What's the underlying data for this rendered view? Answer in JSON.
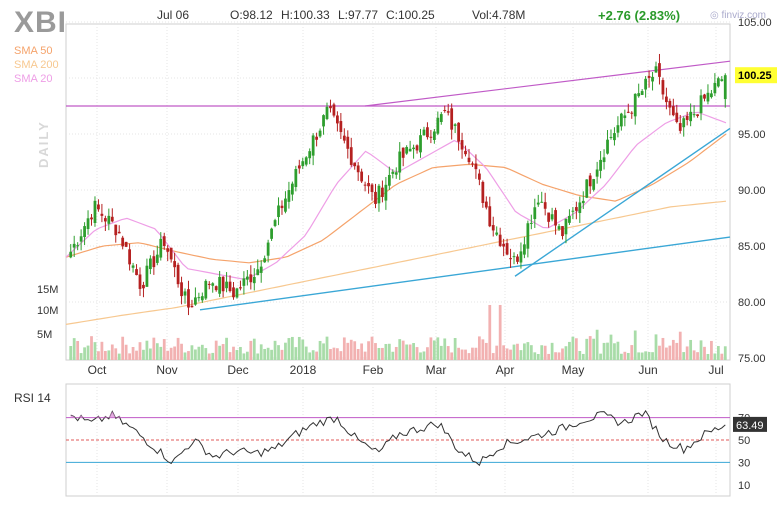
{
  "header": {
    "ticker": "XBI",
    "date": "Jul 06",
    "open": "O:98.12",
    "high": "H:100.33",
    "low": "L:97.77",
    "close": "C:100.25",
    "volume": "Vol:4.78M",
    "change": "+2.76 (2.83%)",
    "brand": "finviz.com",
    "timeframe": "DAILY"
  },
  "legend": [
    {
      "label": "SMA 50",
      "color": "#f5a36b"
    },
    {
      "label": "SMA 200",
      "color": "#f7c890"
    },
    {
      "label": "SMA 20",
      "color": "#ee9ee6"
    }
  ],
  "colors": {
    "up": "#2e9e2e",
    "down": "#b52020",
    "vol_up": "#a8dca8",
    "vol_down": "#f2b1b1",
    "trend_blue": "#3aa7d6",
    "trend_purple": "#c05ac7",
    "grid": "#e6e6e6",
    "price_flag": "#ffff33"
  },
  "chart_data": [
    {
      "type": "candlestick",
      "title": "XBI",
      "price_axis_ticks": [
        75,
        80,
        85,
        90,
        95,
        100,
        105
      ],
      "ylim": [
        75,
        105
      ],
      "volume_axis_ticks": [
        "5M",
        "10M",
        "15M"
      ],
      "x_tick_labels": [
        "Oct",
        "Nov",
        "Dec",
        "2018",
        "Feb",
        "Mar",
        "Apr",
        "May",
        "Jun",
        "Jul"
      ],
      "last_price_label": "100.25",
      "anchors": [
        {
          "month": "Sep",
          "value": 84.5
        },
        {
          "month": "Oct",
          "value": 88.5
        },
        {
          "month": "Oct",
          "value": 86.5
        },
        {
          "month": "Nov",
          "value": 81.5
        },
        {
          "month": "Nov",
          "value": 85.5
        },
        {
          "month": "Nov",
          "value": 79.5
        },
        {
          "month": "Dec",
          "value": 82.0
        },
        {
          "month": "Dec",
          "value": 80.8
        },
        {
          "month": "Dec",
          "value": 83.0
        },
        {
          "month": "Jan",
          "value": 88.5
        },
        {
          "month": "Jan",
          "value": 93.0
        },
        {
          "month": "Jan",
          "value": 97.0
        },
        {
          "month": "Feb",
          "value": 93.0
        },
        {
          "month": "Feb",
          "value": 89.0
        },
        {
          "month": "Feb",
          "value": 92.5
        },
        {
          "month": "Mar",
          "value": 94.5
        },
        {
          "month": "Mar",
          "value": 96.8
        },
        {
          "month": "Mar",
          "value": 93.5
        },
        {
          "month": "Apr",
          "value": 87.0
        },
        {
          "month": "Apr",
          "value": 83.5
        },
        {
          "month": "Apr",
          "value": 89.5
        },
        {
          "month": "May",
          "value": 86.0
        },
        {
          "month": "May",
          "value": 90.0
        },
        {
          "month": "Jun",
          "value": 94.5
        },
        {
          "month": "Jun",
          "value": 97.5
        },
        {
          "month": "Jun",
          "value": 100.5
        },
        {
          "month": "Jun",
          "value": 95.0
        },
        {
          "month": "Jul",
          "value": 97.8
        },
        {
          "month": "Jul",
          "value": 100.25
        }
      ],
      "sma20_anchors": [
        84.0,
        86.5,
        87.5,
        86.5,
        83.0,
        82.5,
        82.0,
        83.5,
        86.0,
        90.5,
        93.5,
        91.5,
        93.0,
        94.5,
        92.0,
        88.0,
        86.5,
        88.0,
        90.5,
        94.0,
        96.0,
        97.0,
        96.0
      ],
      "sma50_anchors": [
        84.0,
        85.0,
        85.3,
        84.5,
        83.8,
        83.5,
        84.0,
        85.5,
        88.0,
        90.5,
        92.0,
        92.3,
        92.0,
        90.5,
        89.5,
        89.0,
        90.5,
        92.5,
        95.0
      ],
      "sma200_anchors": [
        78.0,
        78.8,
        79.5,
        80.5,
        81.5,
        82.5,
        83.5,
        84.5,
        85.5,
        86.5,
        87.5,
        88.5,
        89.0
      ],
      "trendlines": [
        {
          "name": "horizontal resistance",
          "points": [
            [
              0,
              97.5
            ],
            [
              1,
              97.5
            ]
          ]
        },
        {
          "name": "upper channel",
          "from": 97.5,
          "to": 101.5
        },
        {
          "name": "lower support",
          "from": 79.3,
          "to": 85.8
        },
        {
          "name": "steep support",
          "from": 82.5,
          "to": 95.5
        }
      ]
    },
    {
      "type": "line",
      "title": "RSI 14",
      "yticks": [
        10,
        30,
        50,
        70
      ],
      "ylim": [
        0,
        100
      ],
      "reference_lines": [
        30,
        50,
        70
      ],
      "last_value_label": "63.49",
      "anchors": [
        72,
        65,
        72,
        60,
        45,
        30,
        50,
        35,
        40,
        38,
        42,
        55,
        65,
        70,
        50,
        38,
        55,
        60,
        65,
        40,
        30,
        45,
        50,
        55,
        60,
        68,
        72,
        65,
        75,
        50,
        42,
        55,
        63.49
      ]
    }
  ]
}
